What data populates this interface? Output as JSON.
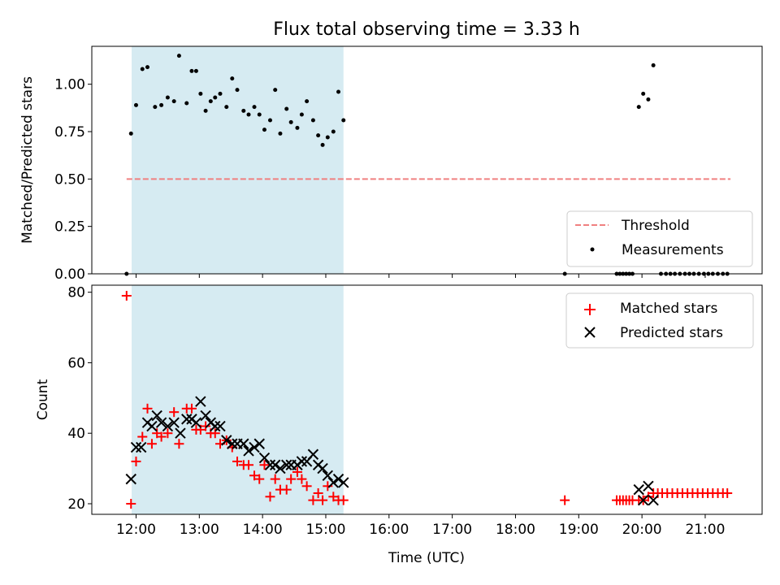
{
  "chart_data": [
    {
      "type": "scatter",
      "title": "Flux total observing time = 3.33 h",
      "ylabel": "Matched/Predicted stars",
      "xlim": [
        11.3,
        21.9
      ],
      "ylim": [
        0,
        1.2
      ],
      "yticks": [
        "0.00",
        "0.25",
        "0.50",
        "0.75",
        "1.00"
      ],
      "yticks_values": [
        0,
        0.25,
        0.5,
        0.75,
        1.0
      ],
      "shaded_region": [
        11.93,
        15.28
      ],
      "threshold": {
        "name": "Threshold",
        "value": 0.5,
        "x": [
          11.85,
          21.4
        ],
        "color": "#f08080",
        "style": "dashed"
      },
      "legend": [
        "Threshold",
        "Measurements"
      ],
      "legend_position": "lower right",
      "series": [
        {
          "name": "Measurements",
          "color": "#000000",
          "x": [
            11.85,
            11.92,
            12.0,
            12.1,
            12.18,
            12.3,
            12.4,
            12.5,
            12.6,
            12.68,
            12.8,
            12.88,
            12.95,
            13.02,
            13.1,
            13.18,
            13.25,
            13.33,
            13.43,
            13.52,
            13.6,
            13.7,
            13.78,
            13.87,
            13.95,
            14.03,
            14.12,
            14.2,
            14.28,
            14.38,
            14.45,
            14.55,
            14.62,
            14.7,
            14.8,
            14.88,
            14.95,
            15.03,
            15.12,
            15.2,
            15.28,
            18.78,
            19.6,
            19.65,
            19.7,
            19.75,
            19.8,
            19.85,
            19.95,
            20.02,
            20.1,
            20.18,
            20.3,
            20.38,
            20.45,
            20.52,
            20.6,
            20.68,
            20.75,
            20.82,
            20.9,
            20.98,
            21.05,
            21.12,
            21.2,
            21.28,
            21.35
          ],
          "y": [
            0.0,
            0.74,
            0.89,
            1.08,
            1.09,
            0.88,
            0.89,
            0.93,
            0.91,
            1.15,
            0.9,
            1.07,
            1.07,
            0.95,
            0.86,
            0.91,
            0.93,
            0.95,
            0.88,
            1.03,
            0.97,
            0.86,
            0.84,
            0.88,
            0.84,
            0.76,
            0.81,
            0.97,
            0.74,
            0.87,
            0.8,
            0.77,
            0.84,
            0.91,
            0.81,
            0.73,
            0.68,
            0.72,
            0.75,
            0.96,
            0.81,
            0.0,
            0.0,
            0.0,
            0.0,
            0.0,
            0.0,
            0.0,
            0.88,
            0.95,
            0.92,
            1.1,
            0.0,
            0.0,
            0.0,
            0.0,
            0.0,
            0.0,
            0.0,
            0.0,
            0.0,
            0.0,
            0.0,
            0.0,
            0.0,
            0.0,
            0.0
          ]
        }
      ]
    },
    {
      "type": "scatter",
      "title": "",
      "xlabel": "Time (UTC)",
      "ylabel": "Count",
      "xlim": [
        11.3,
        21.9
      ],
      "ylim": [
        17,
        82
      ],
      "xticks": [
        "12:00",
        "13:00",
        "14:00",
        "15:00",
        "16:00",
        "17:00",
        "18:00",
        "19:00",
        "20:00",
        "21:00"
      ],
      "xticks_values": [
        12,
        13,
        14,
        15,
        16,
        17,
        18,
        19,
        20,
        21
      ],
      "yticks": [
        "20",
        "40",
        "60",
        "80"
      ],
      "yticks_values": [
        20,
        40,
        60,
        80
      ],
      "shaded_region": [
        11.93,
        15.28
      ],
      "legend": [
        "Matched stars",
        "Predicted stars"
      ],
      "legend_position": "upper right",
      "series": [
        {
          "name": "Matched stars",
          "color": "#ff0000",
          "marker": "+",
          "x": [
            11.85,
            11.92,
            12.0,
            12.1,
            12.18,
            12.25,
            12.33,
            12.4,
            12.5,
            12.6,
            12.68,
            12.8,
            12.88,
            12.95,
            13.02,
            13.1,
            13.18,
            13.25,
            13.33,
            13.43,
            13.52,
            13.6,
            13.7,
            13.78,
            13.87,
            13.95,
            14.03,
            14.12,
            14.2,
            14.28,
            14.38,
            14.45,
            14.55,
            14.62,
            14.7,
            14.8,
            14.88,
            14.95,
            15.03,
            15.12,
            15.2,
            15.28,
            18.78,
            19.6,
            19.65,
            19.7,
            19.75,
            19.8,
            19.85,
            19.95,
            20.02,
            20.1,
            20.18,
            20.25,
            20.32,
            20.4,
            20.48,
            20.56,
            20.64,
            20.72,
            20.8,
            20.88,
            20.96,
            21.04,
            21.12,
            21.2,
            21.28,
            21.35
          ],
          "y": [
            79,
            20,
            32,
            39,
            47,
            37,
            40,
            39,
            40,
            46,
            37,
            47,
            47,
            41,
            41,
            42,
            40,
            40,
            37,
            38,
            36,
            32,
            31,
            31,
            28,
            27,
            31,
            22,
            27,
            24,
            24,
            27,
            29,
            27,
            25,
            21,
            23,
            21,
            25,
            22,
            21,
            21,
            21,
            21,
            21,
            21,
            21,
            21,
            21,
            21,
            21,
            22,
            23,
            23,
            23,
            23,
            23,
            23,
            23,
            23,
            23,
            23,
            23,
            23,
            23,
            23,
            23,
            23
          ]
        },
        {
          "name": "Predicted stars",
          "color": "#000000",
          "marker": "x",
          "x": [
            11.92,
            12.0,
            12.08,
            12.18,
            12.25,
            12.33,
            12.4,
            12.5,
            12.6,
            12.7,
            12.8,
            12.88,
            12.95,
            13.02,
            13.1,
            13.18,
            13.25,
            13.33,
            13.43,
            13.52,
            13.6,
            13.7,
            13.78,
            13.87,
            13.95,
            14.03,
            14.12,
            14.2,
            14.28,
            14.38,
            14.45,
            14.55,
            14.62,
            14.7,
            14.8,
            14.88,
            14.95,
            15.03,
            15.12,
            15.2,
            15.28,
            19.95,
            20.02,
            20.1,
            20.18
          ],
          "y": [
            27,
            36,
            36,
            43,
            42,
            45,
            43,
            42,
            43,
            40,
            44,
            44,
            43,
            49,
            45,
            43,
            42,
            42,
            38,
            37,
            37,
            37,
            35,
            36,
            37,
            33,
            31,
            31,
            30,
            31,
            31,
            31,
            32,
            32,
            34,
            31,
            30,
            28,
            26,
            27,
            26,
            24,
            21,
            25,
            21
          ]
        }
      ]
    }
  ]
}
